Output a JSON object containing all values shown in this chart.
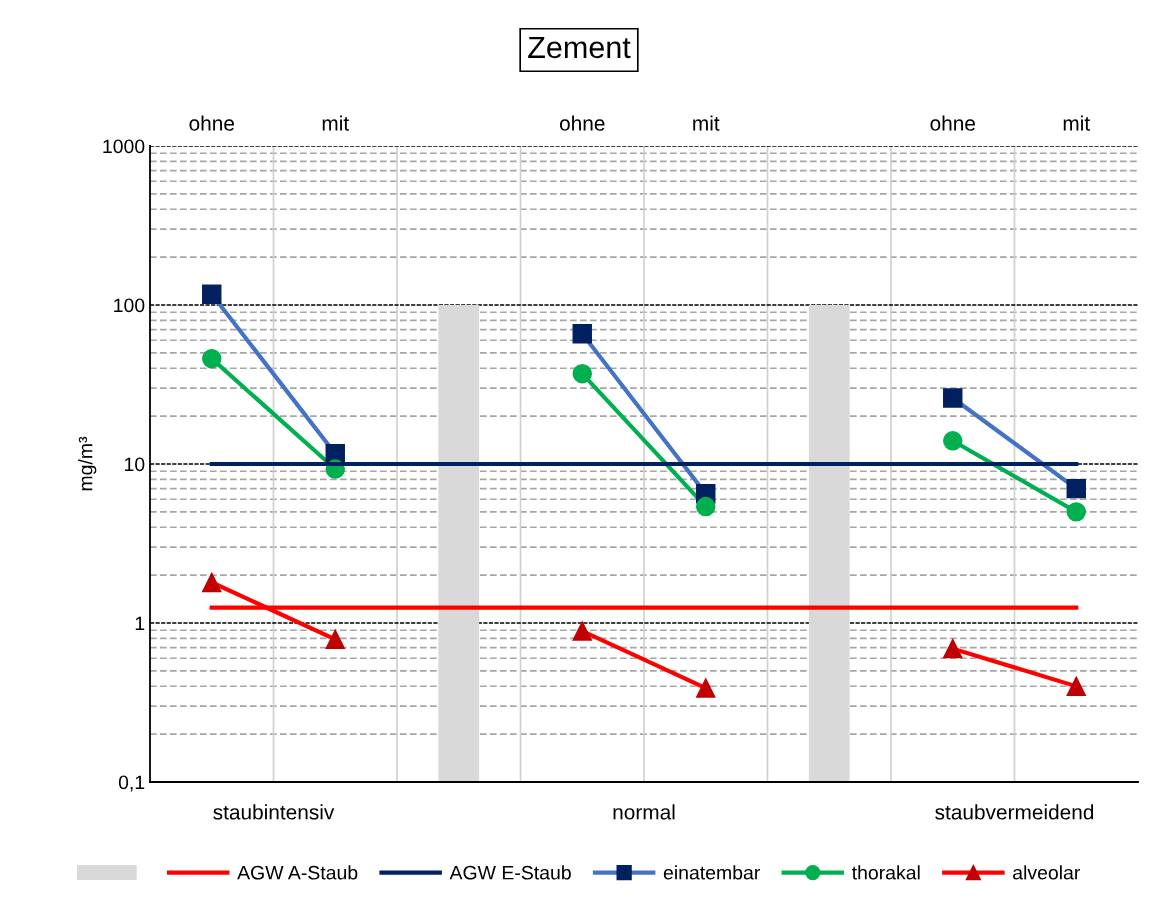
{
  "chart_data": {
    "type": "line",
    "title": "Zement",
    "ylabel": "mg/m³",
    "categories": [
      "ohne",
      "mit",
      null,
      "ohne",
      "mit",
      null,
      "ohne",
      "mit"
    ],
    "annotations": [
      "staubintensiv",
      "normal",
      "staubvermeidend"
    ],
    "log": true,
    "ylim": [
      0.1,
      1000
    ],
    "yticks": [
      {
        "value": 0.1,
        "label": "0,1"
      },
      1,
      10,
      100,
      1000
    ],
    "grid": true,
    "legend": "bottom",
    "series": [
      {
        "type": "bar",
        "color": "#d9d9d9",
        "values": [
          null,
          null,
          100,
          null,
          null,
          100,
          null,
          null
        ]
      },
      {
        "name": "AGW A-Staub",
        "color": "#ff0000",
        "marker": "none",
        "values": [
          1.25,
          1.25,
          1.25,
          1.25,
          1.25,
          1.25,
          1.25,
          1.25
        ]
      },
      {
        "name": "AGW E-Staub",
        "color": "#002060",
        "marker": "none",
        "values": [
          10,
          10,
          10,
          10,
          10,
          10,
          10,
          10
        ]
      },
      {
        "name": "einatembar",
        "color": "#4472c4",
        "colors": [
          "#002060",
          "#002060",
          null,
          "#002060",
          "#002060",
          null,
          "#002060",
          "#002060"
        ],
        "marker": "square",
        "values": [
          117,
          11.6,
          null,
          66,
          6.5,
          null,
          26,
          7.0
        ]
      },
      {
        "name": "thorakal",
        "color": "#00b050",
        "colors": [
          "#00b050",
          "#00b050",
          null,
          "#00b050",
          "#00b050",
          null,
          "#00b050",
          "#00b050"
        ],
        "marker": "circle",
        "values": [
          46,
          9.3,
          null,
          37,
          5.4,
          null,
          14,
          5.0
        ]
      },
      {
        "name": "alveolar",
        "color": "#ff0000",
        "colors": [
          "#c00000",
          "#c00000",
          null,
          "#c00000",
          "#c00000",
          null,
          "#c00000",
          "#c00000"
        ],
        "marker": "triangle",
        "values": [
          1.8,
          0.79,
          null,
          0.89,
          0.39,
          null,
          0.69,
          0.4
        ]
      }
    ]
  }
}
